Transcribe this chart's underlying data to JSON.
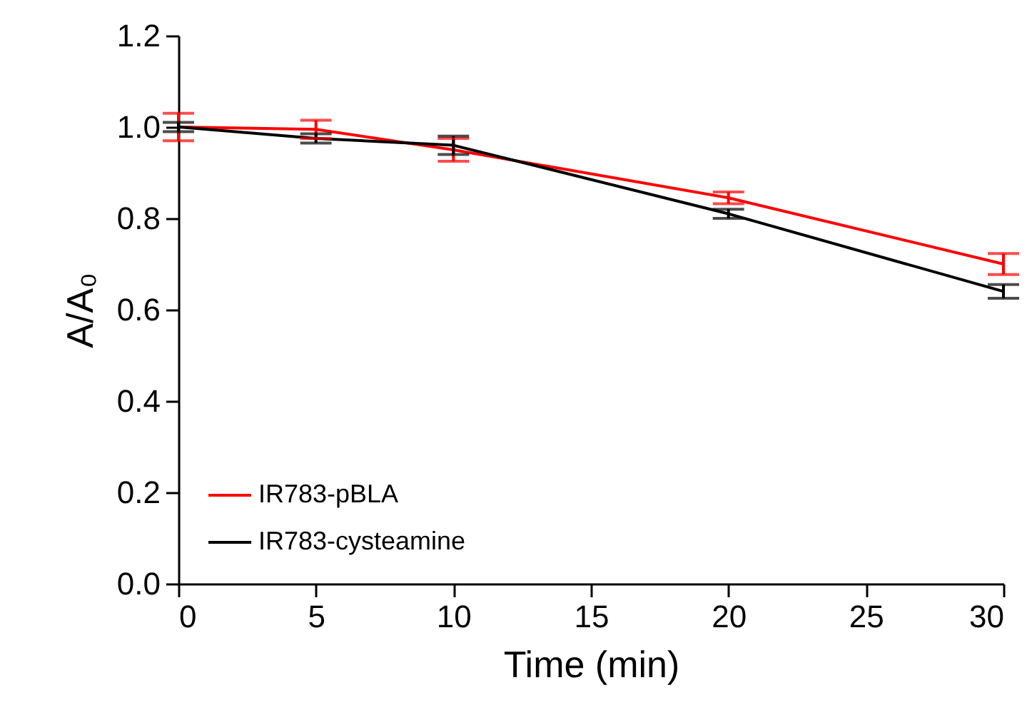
{
  "chart_data": {
    "type": "line",
    "xlabel": "Time (min)",
    "ylabel": "A/A₀",
    "x": [
      0,
      5,
      10,
      20,
      30
    ],
    "series": [
      {
        "name": "IR783-pBLA",
        "color": "#ff0000",
        "values": [
          1.0,
          0.995,
          0.95,
          0.845,
          0.7
        ],
        "errors": [
          0.03,
          0.02,
          0.025,
          0.013,
          0.023
        ]
      },
      {
        "name": "IR783-cysteamine",
        "color": "#000000",
        "values": [
          1.0,
          0.975,
          0.96,
          0.81,
          0.64
        ],
        "errors": [
          0.01,
          0.01,
          0.02,
          0.01,
          0.015
        ]
      }
    ],
    "xlim": [
      0,
      30
    ],
    "xticks": [
      0,
      5,
      10,
      15,
      20,
      25,
      30
    ],
    "ylim": [
      0,
      1.2
    ],
    "yticks": [
      {
        "value": 0,
        "label": "0.0"
      },
      {
        "value": 0.2,
        "label": "0.2"
      },
      {
        "value": 0.4,
        "label": "0.4"
      },
      {
        "value": 0.6,
        "label": "0.6"
      },
      {
        "value": 0.8,
        "label": "0.8"
      },
      {
        "value": 1.0,
        "label": "1.0"
      },
      {
        "value": 1.2,
        "label": "1.2"
      }
    ],
    "legend": "bottom left",
    "grid": false,
    "marker": "none",
    "line_style": "solid"
  }
}
